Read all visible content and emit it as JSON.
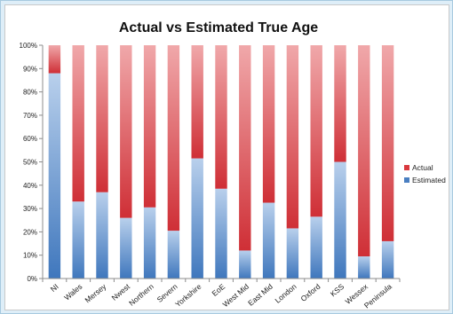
{
  "chart_data": {
    "type": "bar",
    "stacked": true,
    "percent_stacked": true,
    "title": "Actual vs Estimated True Age",
    "categories": [
      "NI",
      "Wales",
      "Mersey",
      "Nwest",
      "Northern",
      "Severn",
      "Yorkshire",
      "EoE",
      "West Mid",
      "East Mid",
      "London",
      "Oxford",
      "KSS",
      "Wessex",
      "Peninsula"
    ],
    "series": [
      {
        "name": "Estimated",
        "color": "#4a7fc1",
        "values": [
          88,
          33,
          37,
          26,
          30.5,
          20.5,
          51.5,
          38.5,
          12,
          32.5,
          21.5,
          26.5,
          50,
          9.5,
          16
        ]
      },
      {
        "name": "Actual",
        "color": "#d9383e",
        "values": [
          12,
          67,
          63,
          74,
          69.5,
          79.5,
          48.5,
          61.5,
          88,
          67.5,
          78.5,
          73.5,
          50,
          90.5,
          84
        ]
      }
    ],
    "ylim": [
      0,
      100
    ],
    "yticks": [
      "0%",
      "10%",
      "20%",
      "30%",
      "40%",
      "50%",
      "60%",
      "70%",
      "80%",
      "90%",
      "100%"
    ],
    "legend_position": "right",
    "grid": false
  }
}
